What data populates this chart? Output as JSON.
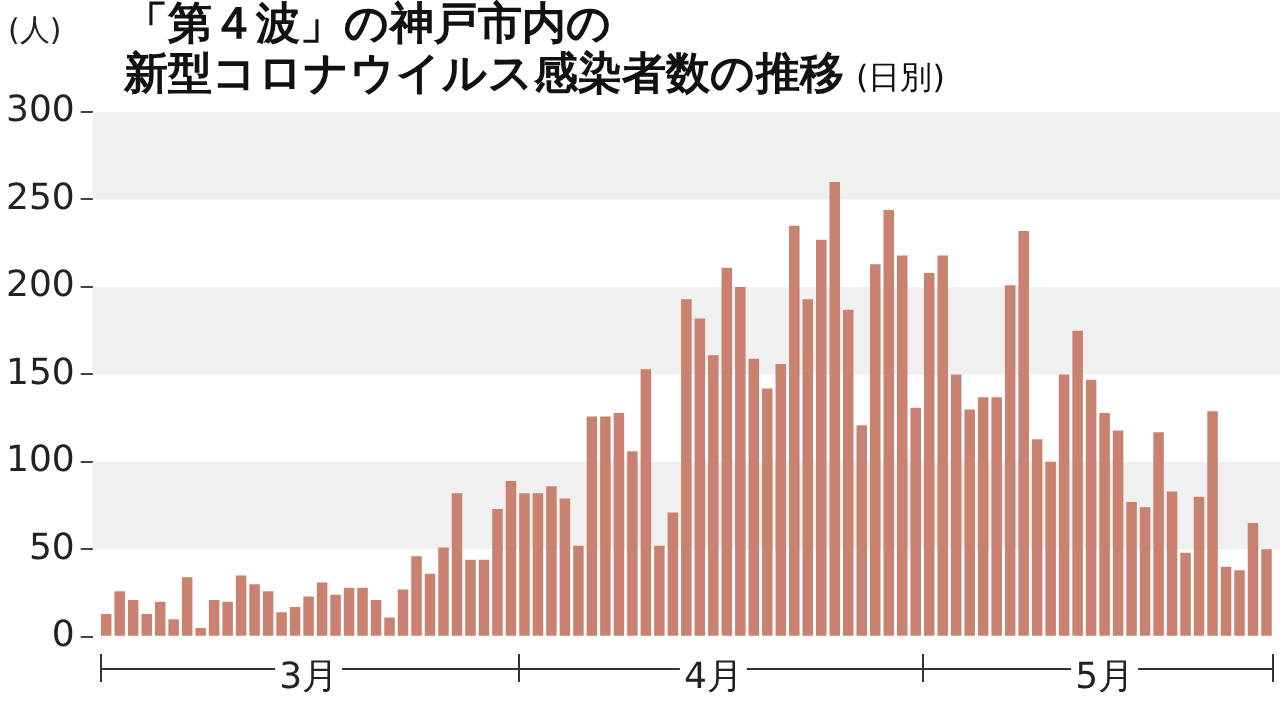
{
  "chart_data": {
    "type": "bar",
    "title": "「第４波」の神戸市内の新型コロナウイルス感染者数の推移",
    "subtitle": "(日別)",
    "ylabel": "(人)",
    "x": [
      "--03-01",
      "--03-02",
      "--03-03",
      "--03-04",
      "--03-05",
      "--03-06",
      "--03-07",
      "--03-08",
      "--03-09",
      "--03-10",
      "--03-11",
      "--03-12",
      "--03-13",
      "--03-14",
      "--03-15",
      "--03-16",
      "--03-17",
      "--03-18",
      "--03-19",
      "--03-20",
      "--03-21",
      "--03-22",
      "--03-23",
      "--03-24",
      "--03-25",
      "--03-26",
      "--03-27",
      "--03-28",
      "--03-29",
      "--03-30",
      "--03-31",
      "--04-01",
      "--04-02",
      "--04-03",
      "--04-04",
      "--04-05",
      "--04-06",
      "--04-07",
      "--04-08",
      "--04-09",
      "--04-10",
      "--04-11",
      "--04-12",
      "--04-13",
      "--04-14",
      "--04-15",
      "--04-16",
      "--04-17",
      "--04-18",
      "--04-19",
      "--04-20",
      "--04-21",
      "--04-22",
      "--04-23",
      "--04-24",
      "--04-25",
      "--04-26",
      "--04-27",
      "--04-28",
      "--04-29",
      "--04-30",
      "--05-01",
      "--05-02",
      "--05-03",
      "--05-04",
      "--05-05",
      "--05-06",
      "--05-07",
      "--05-08",
      "--05-09",
      "--05-10",
      "--05-11",
      "--05-12",
      "--05-13",
      "--05-14",
      "--05-15",
      "--05-16",
      "--05-17",
      "--05-18",
      "--05-19",
      "--05-20",
      "--05-21",
      "--05-22",
      "--05-23",
      "--05-24",
      "--05-25",
      "--05-26"
    ],
    "values": [
      13,
      26,
      21,
      13,
      20,
      10,
      34,
      5,
      21,
      20,
      35,
      30,
      26,
      14,
      17,
      23,
      31,
      24,
      28,
      28,
      21,
      11,
      27,
      46,
      36,
      51,
      82,
      44,
      44,
      73,
      89,
      82,
      82,
      86,
      79,
      52,
      126,
      126,
      128,
      106,
      153,
      52,
      71,
      193,
      182,
      161,
      211,
      200,
      159,
      142,
      156,
      235,
      193,
      227,
      260,
      187,
      121,
      213,
      244,
      218,
      131,
      208,
      218,
      150,
      130,
      137,
      137,
      201,
      232,
      113,
      100,
      150,
      175,
      147,
      128,
      118,
      77,
      74,
      117,
      83,
      48,
      80,
      129,
      40,
      38,
      65,
      50
    ],
    "color": "#c8826f",
    "xlim": [
      "--02-28",
      "--05-27"
    ],
    "xticks": [
      {
        "value": "--03-16",
        "label": "3月"
      },
      {
        "value": "--04-15",
        "label": "4月"
      },
      {
        "value": "--05-14",
        "label": "5月"
      }
    ],
    "ylim": [
      0,
      300
    ],
    "yticks": [
      0,
      50,
      100,
      150,
      200,
      250,
      300
    ],
    "legend": false
  }
}
